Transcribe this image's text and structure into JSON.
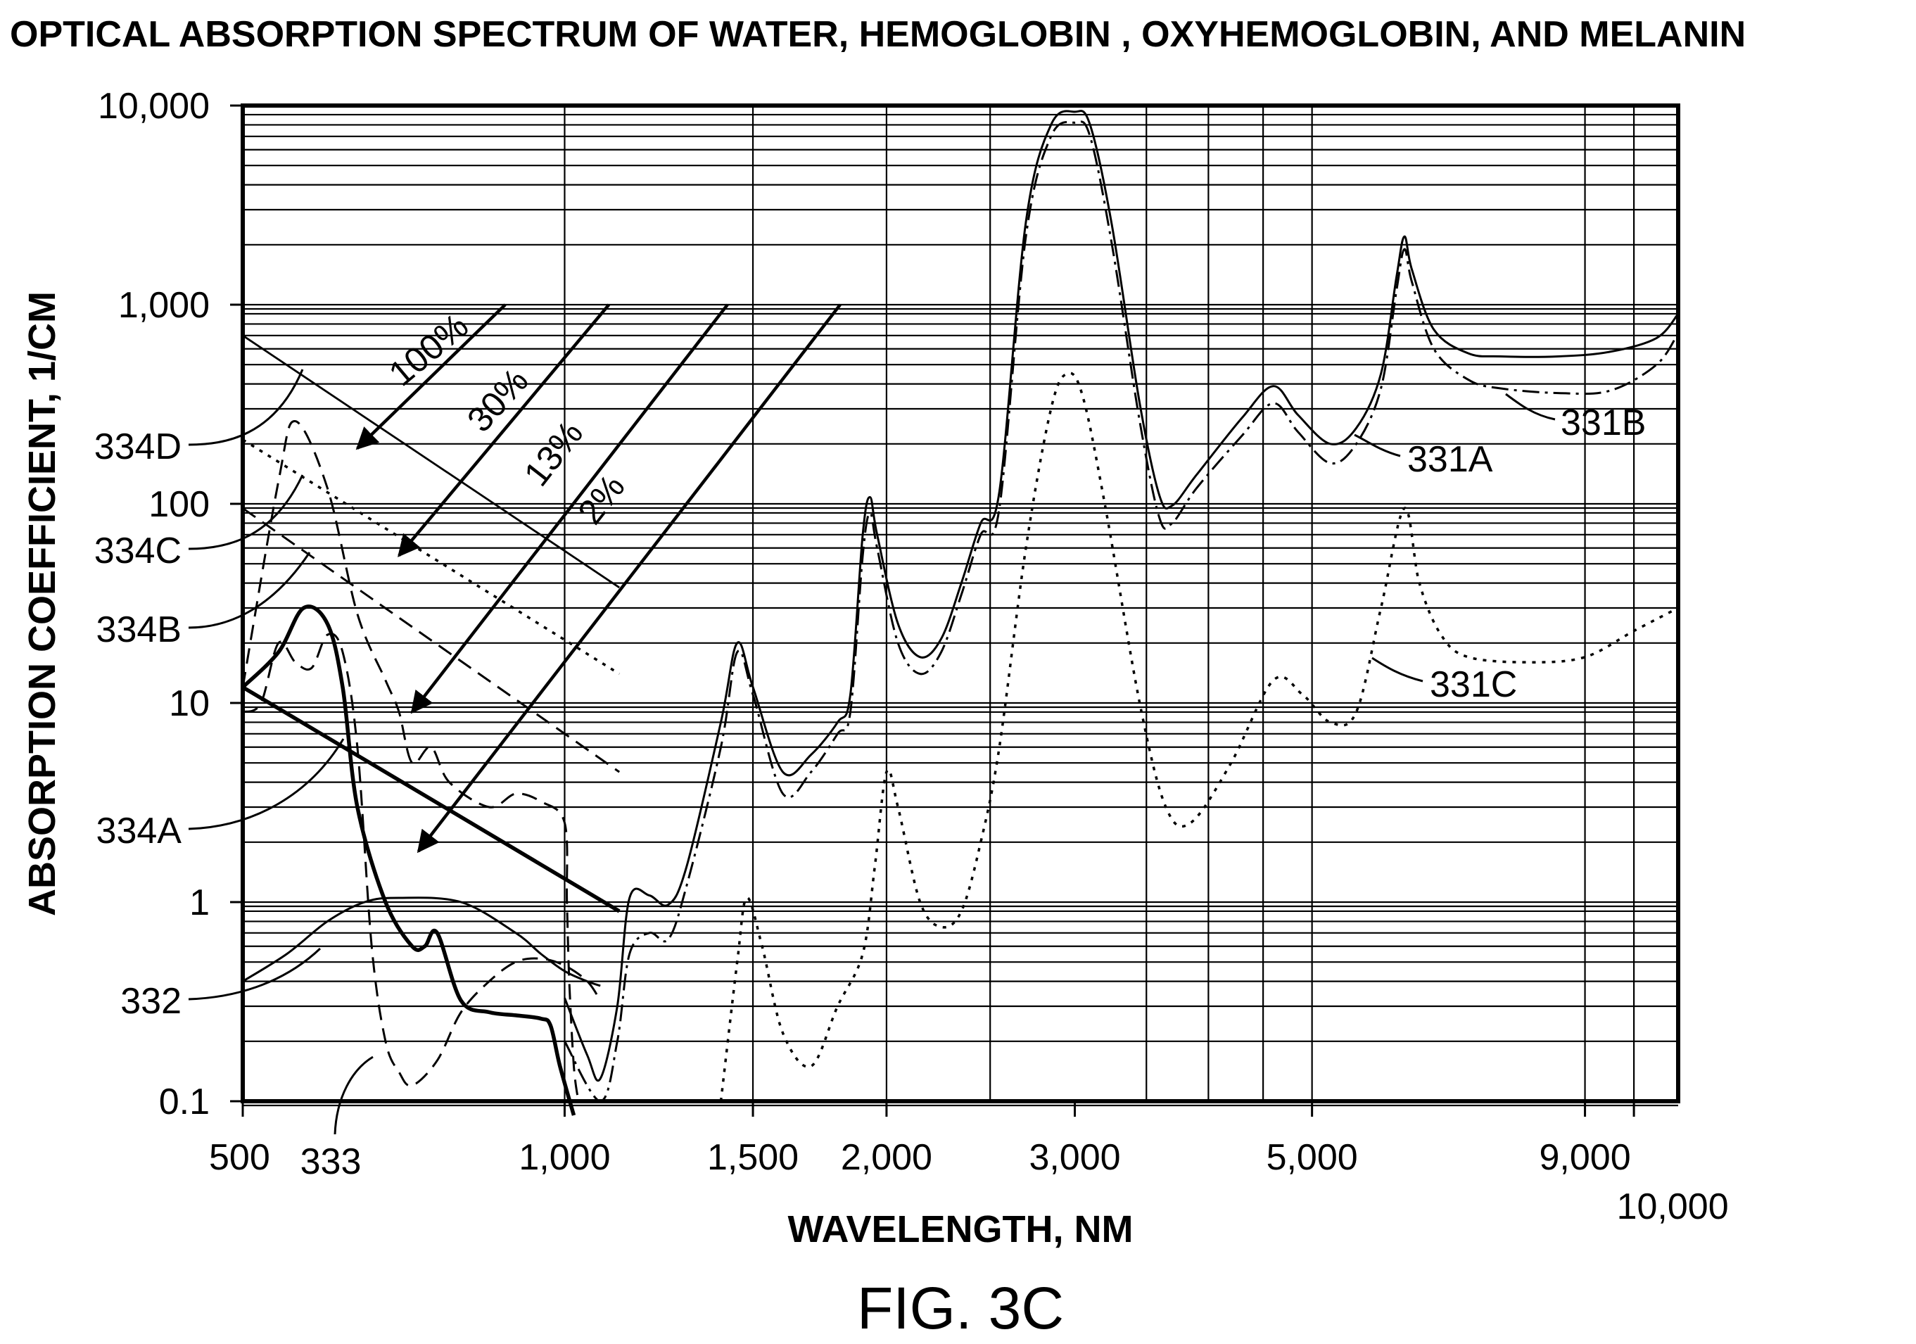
{
  "chart_data": {
    "type": "line",
    "title": "OPTICAL ABSORPTION SPECTRUM OF WATER, HEMOGLOBIN , OXYHEMOGLOBIN, AND MELANIN",
    "xlabel": "WAVELENGTH, NM",
    "ylabel": "ABSORPTION COEFFICIENT, 1/CM",
    "figure_label": "FIG. 3C",
    "x_scale": "log",
    "y_scale": "log",
    "xlim": [
      500,
      11000
    ],
    "ylim": [
      0.1,
      10000
    ],
    "grid": true,
    "x_ticks": [
      {
        "value": 500,
        "label": "500"
      },
      {
        "value": 1000,
        "label": "1,000"
      },
      {
        "value": 1500,
        "label": "1,500"
      },
      {
        "value": 2000,
        "label": "2,000"
      },
      {
        "value": 3000,
        "label": "3,000"
      },
      {
        "value": 5000,
        "label": "5,000"
      },
      {
        "value": 9000,
        "label": "9,000"
      },
      {
        "value": 10000,
        "label": "10,000"
      }
    ],
    "y_ticks": [
      {
        "value": 10000,
        "label": "10,000"
      },
      {
        "value": 1000,
        "label": "1,000"
      },
      {
        "value": 100,
        "label": "100"
      },
      {
        "value": 10,
        "label": "10"
      },
      {
        "value": 1,
        "label": "1"
      },
      {
        "value": 0.1,
        "label": "0.1"
      }
    ],
    "series": [
      {
        "name": "331A",
        "style": "solid",
        "points": [
          [
            1000,
            0.33
          ],
          [
            1050,
            0.17
          ],
          [
            1080,
            0.13
          ],
          [
            1120,
            0.3
          ],
          [
            1150,
            1.05
          ],
          [
            1200,
            1.08
          ],
          [
            1250,
            0.97
          ],
          [
            1300,
            1.5
          ],
          [
            1400,
            8
          ],
          [
            1450,
            20
          ],
          [
            1500,
            12
          ],
          [
            1600,
            4.5
          ],
          [
            1700,
            5.5
          ],
          [
            1800,
            8
          ],
          [
            1850,
            11
          ],
          [
            1900,
            70
          ],
          [
            1930,
            108
          ],
          [
            1960,
            70
          ],
          [
            2050,
            25
          ],
          [
            2150,
            17
          ],
          [
            2250,
            21
          ],
          [
            2350,
            40
          ],
          [
            2450,
            80
          ],
          [
            2550,
            115
          ],
          [
            2700,
            2600
          ],
          [
            2850,
            8000
          ],
          [
            3000,
            9300
          ],
          [
            3100,
            8000
          ],
          [
            3250,
            2500
          ],
          [
            3450,
            320
          ],
          [
            3600,
            110
          ],
          [
            3700,
            98
          ],
          [
            3900,
            140
          ],
          [
            4300,
            270
          ],
          [
            4600,
            390
          ],
          [
            4850,
            280
          ],
          [
            5200,
            200
          ],
          [
            5500,
            240
          ],
          [
            5800,
            450
          ],
          [
            6000,
            1400
          ],
          [
            6100,
            2200
          ],
          [
            6200,
            1500
          ],
          [
            6500,
            750
          ],
          [
            7000,
            570
          ],
          [
            7500,
            550
          ],
          [
            8500,
            550
          ],
          [
            9500,
            580
          ],
          [
            10500,
            680
          ],
          [
            11000,
            900
          ]
        ]
      },
      {
        "name": "331B",
        "style": "dash-dot",
        "points": [
          [
            1000,
            0.2
          ],
          [
            1080,
            0.1
          ],
          [
            1120,
            0.2
          ],
          [
            1150,
            0.55
          ],
          [
            1200,
            0.7
          ],
          [
            1250,
            0.65
          ],
          [
            1300,
            1.2
          ],
          [
            1400,
            6
          ],
          [
            1450,
            18
          ],
          [
            1500,
            11
          ],
          [
            1600,
            3.5
          ],
          [
            1700,
            4.5
          ],
          [
            1800,
            7
          ],
          [
            1850,
            9
          ],
          [
            1900,
            55
          ],
          [
            1930,
            90
          ],
          [
            1960,
            60
          ],
          [
            2050,
            20
          ],
          [
            2150,
            14
          ],
          [
            2250,
            18
          ],
          [
            2350,
            35
          ],
          [
            2450,
            70
          ],
          [
            2550,
            95
          ],
          [
            2700,
            2200
          ],
          [
            2850,
            7000
          ],
          [
            3000,
            8200
          ],
          [
            3100,
            7000
          ],
          [
            3250,
            2000
          ],
          [
            3450,
            260
          ],
          [
            3600,
            85
          ],
          [
            3700,
            80
          ],
          [
            3900,
            120
          ],
          [
            4300,
            220
          ],
          [
            4600,
            320
          ],
          [
            4850,
            230
          ],
          [
            5200,
            160
          ],
          [
            5500,
            200
          ],
          [
            5800,
            380
          ],
          [
            6000,
            1200
          ],
          [
            6100,
            1900
          ],
          [
            6200,
            1300
          ],
          [
            6500,
            600
          ],
          [
            7000,
            420
          ],
          [
            7500,
            380
          ],
          [
            8500,
            360
          ],
          [
            9500,
            370
          ],
          [
            10500,
            500
          ],
          [
            11000,
            720
          ]
        ]
      },
      {
        "name": "331C",
        "style": "dotted",
        "points": [
          [
            1400,
            0.1
          ],
          [
            1450,
            0.5
          ],
          [
            1480,
            1.05
          ],
          [
            1530,
            0.6
          ],
          [
            1600,
            0.22
          ],
          [
            1700,
            0.15
          ],
          [
            1800,
            0.3
          ],
          [
            1900,
            0.55
          ],
          [
            1950,
            1.5
          ],
          [
            2000,
            4.5
          ],
          [
            2050,
            3
          ],
          [
            2150,
            1
          ],
          [
            2250,
            0.75
          ],
          [
            2350,
            0.9
          ],
          [
            2450,
            2
          ],
          [
            2550,
            6
          ],
          [
            2700,
            60
          ],
          [
            2850,
            300
          ],
          [
            2950,
            450
          ],
          [
            3050,
            350
          ],
          [
            3200,
            100
          ],
          [
            3450,
            10
          ],
          [
            3650,
            3
          ],
          [
            3850,
            2.5
          ],
          [
            4200,
            5
          ],
          [
            4600,
            13
          ],
          [
            4900,
            11
          ],
          [
            5200,
            8
          ],
          [
            5500,
            9
          ],
          [
            5800,
            30
          ],
          [
            6100,
            95
          ],
          [
            6300,
            40
          ],
          [
            6600,
            22
          ],
          [
            7000,
            17
          ],
          [
            8000,
            16
          ],
          [
            9000,
            17
          ],
          [
            10000,
            23
          ],
          [
            11000,
            30
          ]
        ]
      },
      {
        "name": "332",
        "style": "solid",
        "points": [
          [
            500,
            0.4
          ],
          [
            550,
            0.55
          ],
          [
            600,
            0.8
          ],
          [
            650,
            1.0
          ],
          [
            700,
            1.05
          ],
          [
            800,
            1.0
          ],
          [
            900,
            0.7
          ],
          [
            950,
            0.55
          ],
          [
            1000,
            0.45
          ],
          [
            1050,
            0.4
          ],
          [
            1080,
            0.38
          ]
        ]
      },
      {
        "name": "333",
        "style": "dashed",
        "points": [
          [
            500,
            9
          ],
          [
            520,
            10
          ],
          [
            540,
            20
          ],
          [
            560,
            16
          ],
          [
            580,
            15
          ],
          [
            600,
            22
          ],
          [
            620,
            18
          ],
          [
            640,
            6
          ],
          [
            660,
            0.6
          ],
          [
            680,
            0.2
          ],
          [
            700,
            0.14
          ],
          [
            720,
            0.12
          ],
          [
            760,
            0.16
          ],
          [
            800,
            0.28
          ],
          [
            850,
            0.4
          ],
          [
            900,
            0.5
          ],
          [
            950,
            0.52
          ],
          [
            1000,
            0.48
          ],
          [
            1050,
            0.4
          ],
          [
            1080,
            0.32
          ]
        ]
      },
      {
        "name": "334A",
        "style": "bold-solid",
        "points": [
          [
            500,
            12
          ],
          [
            540,
            18
          ],
          [
            570,
            30
          ],
          [
            600,
            25
          ],
          [
            620,
            12
          ],
          [
            640,
            3
          ],
          [
            680,
            1.0
          ],
          [
            720,
            0.6
          ],
          [
            740,
            0.6
          ],
          [
            760,
            0.7
          ],
          [
            800,
            0.32
          ],
          [
            850,
            0.28
          ],
          [
            900,
            0.27
          ],
          [
            950,
            0.26
          ],
          [
            970,
            0.24
          ],
          [
            990,
            0.15
          ],
          [
            1020,
            0.06
          ]
        ]
      },
      {
        "name": "334B",
        "style": "dashed",
        "points": [
          [
            500,
            12
          ],
          [
            540,
            130
          ],
          [
            560,
            260
          ],
          [
            600,
            120
          ],
          [
            640,
            28
          ],
          [
            680,
            13
          ],
          [
            700,
            9
          ],
          [
            720,
            5
          ],
          [
            750,
            6
          ],
          [
            780,
            4
          ],
          [
            850,
            3
          ],
          [
            900,
            3.5
          ],
          [
            950,
            3.2
          ],
          [
            1000,
            2.5
          ],
          [
            1005,
            1
          ],
          [
            1010,
            0.4
          ],
          [
            1020,
            0.15
          ],
          [
            1030,
            0.1
          ]
        ]
      }
    ],
    "melanin_lines": [
      {
        "label": "334D",
        "style": "solid-thin",
        "points": [
          [
            500,
            700
          ],
          [
            1125,
            38
          ]
        ]
      },
      {
        "label": "334C",
        "style": "dotted",
        "points": [
          [
            500,
            210
          ],
          [
            1125,
            14
          ]
        ]
      },
      {
        "label": "334B",
        "style": "dashed",
        "points": [
          [
            500,
            95
          ],
          [
            1125,
            4.5
          ]
        ]
      },
      {
        "label": "334A",
        "style": "bold-solid",
        "points": [
          [
            500,
            12
          ],
          [
            1125,
            0.9
          ]
        ]
      }
    ],
    "concentration_arrows": [
      {
        "label": "100%",
        "from": [
          880,
          1000
        ],
        "to": [
          640,
          190
        ]
      },
      {
        "label": "30%",
        "from": [
          1100,
          1000
        ],
        "to": [
          700,
          55
        ]
      },
      {
        "label": "13%",
        "from": [
          1420,
          1000
        ],
        "to": [
          720,
          9
        ]
      },
      {
        "label": "2%",
        "from": [
          1810,
          1000
        ],
        "to": [
          730,
          1.8
        ]
      }
    ],
    "reference_labels": [
      {
        "label": "331A",
        "series": "331A"
      },
      {
        "label": "331B",
        "series": "331B"
      },
      {
        "label": "331C",
        "series": "331C"
      },
      {
        "label": "332",
        "series": "332"
      },
      {
        "label": "333",
        "series": "333"
      },
      {
        "label": "334A",
        "series": "334A"
      },
      {
        "label": "334B",
        "series": "334B"
      },
      {
        "label": "334C",
        "series": "334C"
      },
      {
        "label": "334D",
        "series": "334D"
      }
    ]
  }
}
